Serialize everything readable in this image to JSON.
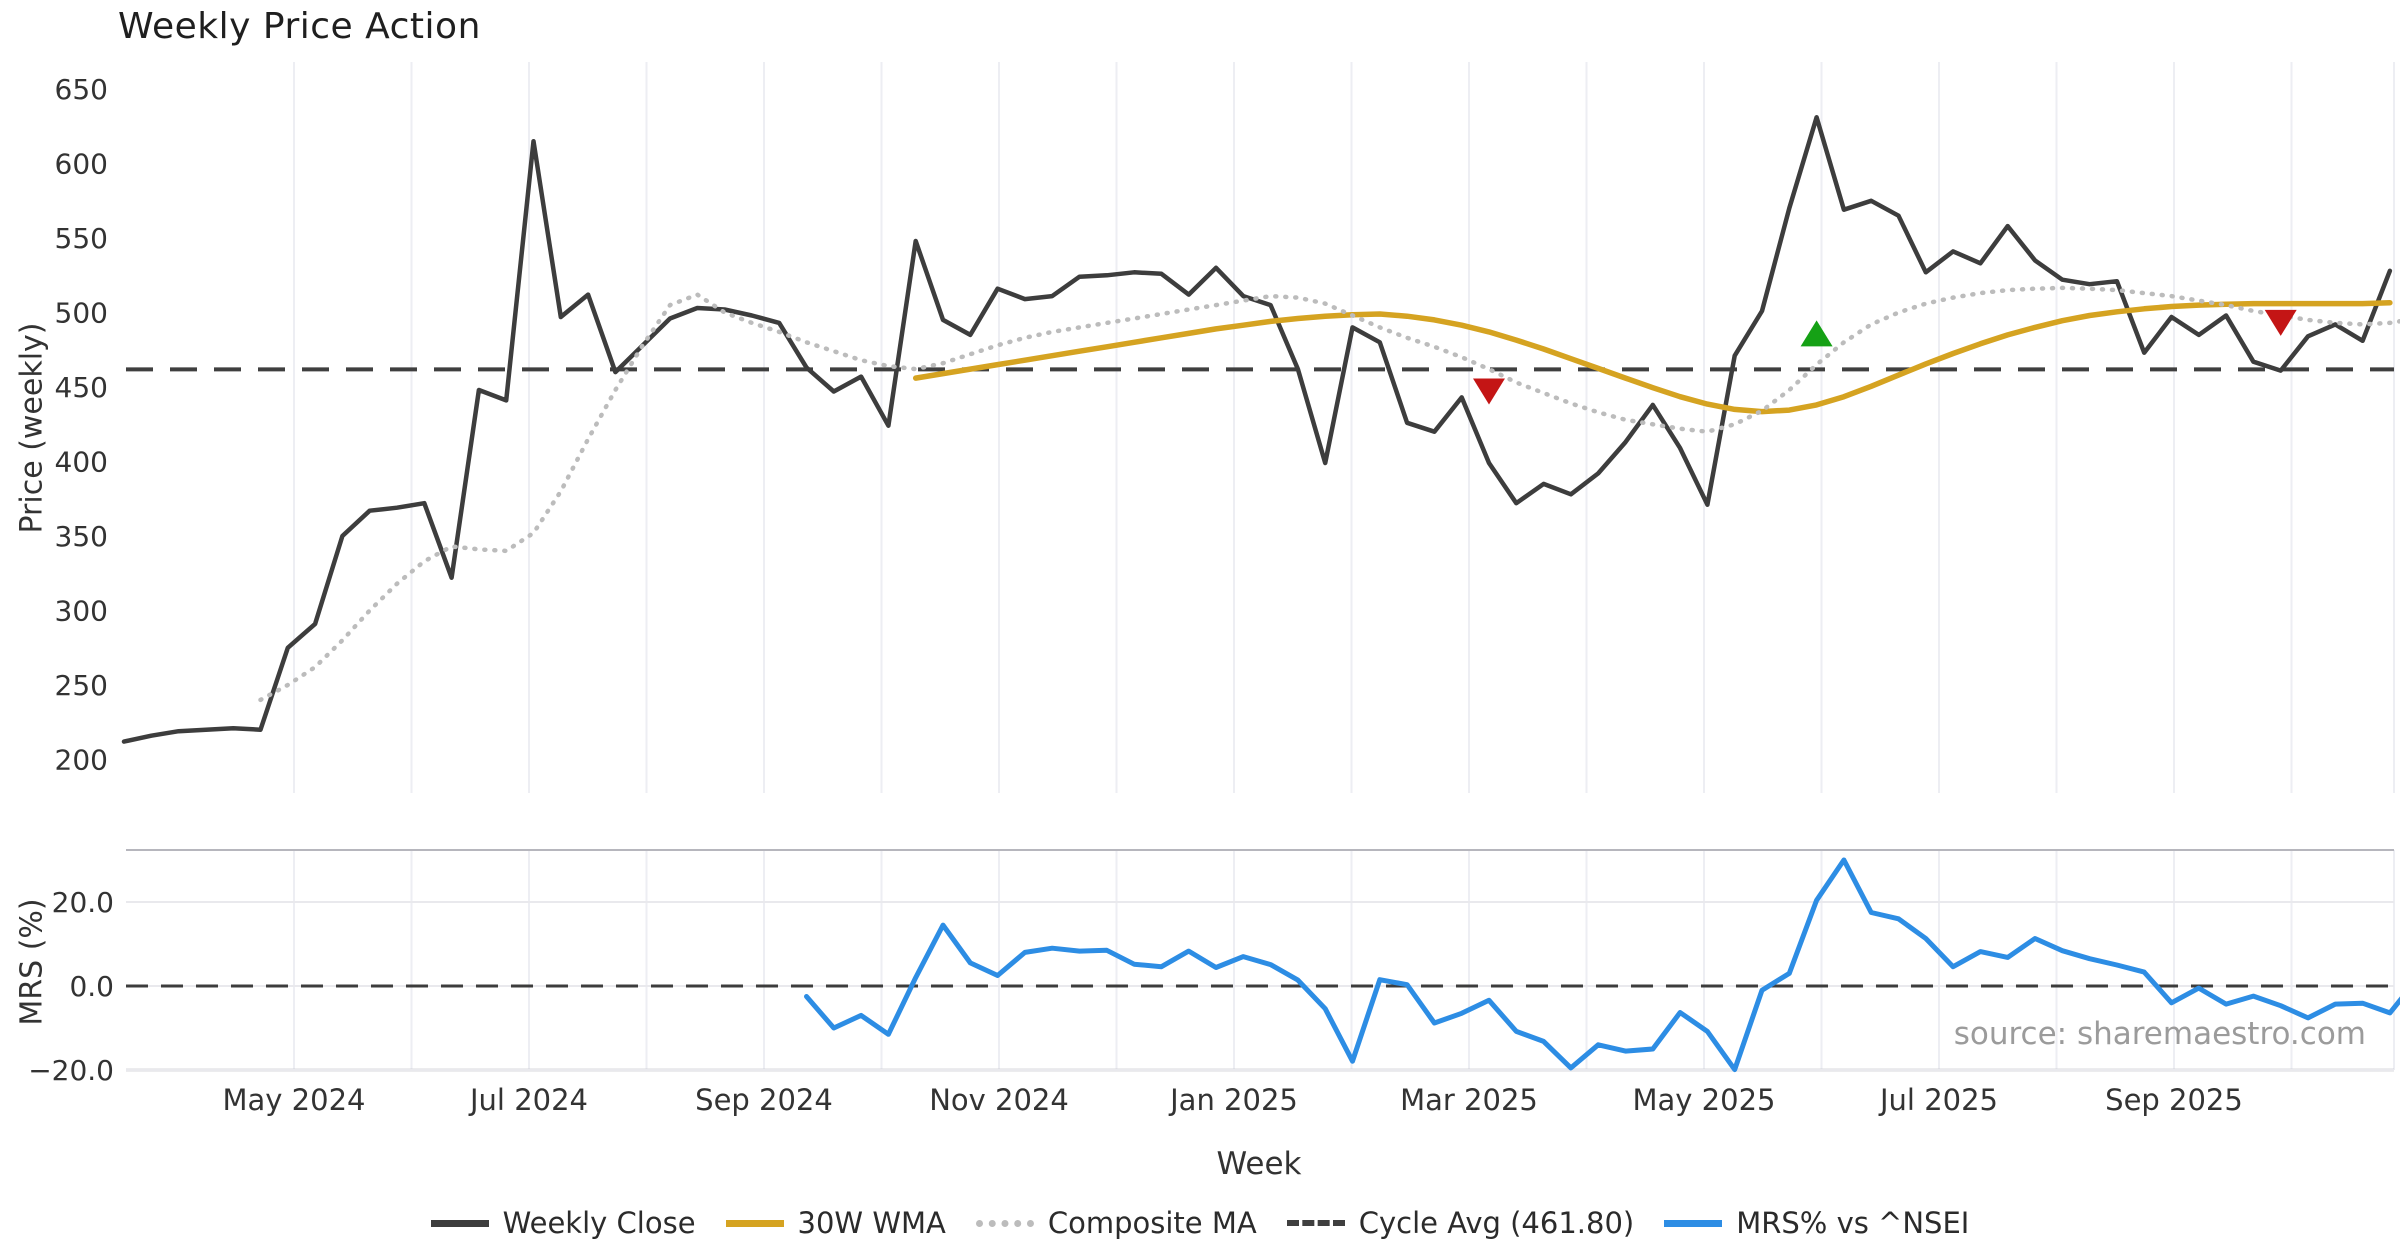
{
  "title": "Weekly Price Action",
  "source_note": "source: sharemaestro.com",
  "chart_data": {
    "type": "line",
    "title": "Weekly Price Action",
    "xlabel": "Week",
    "x_start": "2024-04-15",
    "x_freq": "weekly",
    "month_gridlines": [
      "May 2024",
      "",
      "Jul 2024",
      "",
      "Sep 2024",
      "",
      "Nov 2024",
      "",
      "Jan 2025",
      "",
      "Mar 2025",
      "",
      "May 2025",
      "",
      "Jul 2025",
      "",
      "Sep 2025",
      "",
      ""
    ],
    "panels": [
      {
        "name": "price",
        "ylabel": "Price (weekly)",
        "ylim": [
          178,
          662
        ],
        "yticks": [
          650,
          600,
          550,
          500,
          450,
          400,
          350,
          300,
          250,
          200
        ],
        "grid": "vertical-months"
      },
      {
        "name": "mrs",
        "ylabel": "MRS (%)",
        "ylim": [
          -20,
          32.4
        ],
        "yticks": [
          20.0,
          0.0,
          -20.0
        ],
        "ytick_labels": [
          "20.0",
          "0.0",
          "−20.0"
        ],
        "zero_line": "dashed",
        "grid": "horizontal+vertical-months"
      }
    ],
    "cycle_avg": 461.8,
    "series": [
      {
        "name": "Weekly Close",
        "panel": "price",
        "color": "#3d3d3d",
        "style": "solid",
        "width": 4.5,
        "start_week": 0,
        "values": [
          212,
          216,
          219,
          220,
          221,
          220,
          275,
          291,
          350,
          367,
          369,
          372,
          322,
          448,
          441,
          615,
          497,
          512,
          460,
          478,
          496,
          503,
          502,
          498,
          493,
          463,
          447,
          457,
          424,
          548,
          495,
          485,
          516,
          509,
          511,
          524,
          525,
          527,
          526,
          512,
          530,
          511,
          505,
          462,
          399,
          490,
          480,
          426,
          420,
          443,
          399,
          372,
          385,
          378,
          392,
          413,
          438,
          409,
          371,
          471,
          501,
          570,
          631,
          569,
          575,
          565,
          527,
          541,
          533,
          558,
          535,
          522,
          519,
          521,
          473,
          497,
          485,
          498,
          467,
          461,
          484,
          492,
          481,
          528
        ]
      },
      {
        "name": "30W WMA",
        "panel": "price",
        "color": "#d5a321",
        "style": "solid",
        "width": 5.5,
        "start_week": 29,
        "values": [
          456,
          459,
          462,
          465,
          468,
          471,
          474,
          477,
          480,
          483,
          486,
          489,
          491.5,
          494,
          496,
          497.5,
          498.5,
          499,
          497.5,
          495,
          491.5,
          487,
          481.5,
          475.5,
          469,
          462.5,
          456,
          449.5,
          443.5,
          438.5,
          435,
          433.5,
          434.5,
          438,
          443.5,
          450.5,
          458,
          465.5,
          472.5,
          479,
          485,
          490,
          494.5,
          498,
          500.5,
          502.5,
          504,
          505,
          505.5,
          506,
          506,
          506,
          506,
          506,
          506.5
        ]
      },
      {
        "name": "Composite MA",
        "panel": "price",
        "color": "#bcbcbc",
        "style": "dotted",
        "width": 4.5,
        "start_week": 5,
        "values": [
          240,
          250,
          262,
          280,
          300,
          318,
          333,
          343,
          341,
          340,
          352,
          380,
          415,
          448,
          478,
          505,
          512,
          500,
          493,
          487,
          480,
          474,
          468,
          464,
          462,
          466,
          472,
          478,
          483,
          487,
          490,
          493,
          496,
          499,
          502,
          505,
          508,
          511,
          510,
          506,
          498,
          490,
          483,
          477,
          470,
          462,
          453,
          446,
          439,
          433,
          428,
          425,
          422,
          420,
          425,
          434,
          448,
          465,
          480,
          492,
          500,
          506,
          510,
          513,
          515,
          516,
          516.5,
          516,
          515,
          513,
          511,
          508,
          505,
          501,
          498,
          495,
          493,
          492,
          493,
          496
        ]
      },
      {
        "name": "MRS% vs ^NSEI",
        "panel": "mrs",
        "color": "#2d8de4",
        "style": "solid",
        "width": 5,
        "start_week": 25,
        "values": [
          -2.5,
          -10,
          -7,
          -11.5,
          2,
          14.5,
          5.5,
          2.5,
          8,
          9,
          8.3,
          8.5,
          5.2,
          4.6,
          8.3,
          4.4,
          7,
          5.1,
          1.4,
          -5.4,
          -17.9,
          1.5,
          0.3,
          -8.8,
          -6.5,
          -3.4,
          -10.8,
          -13.2,
          -19.5,
          -14,
          -15.5,
          -15,
          -6.3,
          -10.8,
          -19.9,
          -1,
          3,
          20.4,
          30,
          17.5,
          16,
          11.3,
          4.6,
          8.2,
          6.8,
          11.3,
          8.4,
          6.5,
          5,
          3.3,
          -4,
          -0.5,
          -4.3,
          -2.4,
          -4.7,
          -7.6,
          -4.3,
          -4.1,
          -6.4,
          1.7
        ]
      }
    ],
    "markers": [
      {
        "shape": "triangle-down",
        "color": "#c41515",
        "week": 50,
        "price": 447
      },
      {
        "shape": "triangle-up",
        "color": "#15a115",
        "week": 62,
        "price": 486
      },
      {
        "shape": "triangle-down",
        "color": "#c41515",
        "week": 79,
        "price": 493
      }
    ],
    "legend": [
      {
        "label": "Weekly Close",
        "swatch": "solid",
        "color": "#3d3d3d"
      },
      {
        "label": "30W WMA",
        "swatch": "solid",
        "color": "#d5a321"
      },
      {
        "label": "Composite MA",
        "swatch": "dotted",
        "color": "#bcbcbc"
      },
      {
        "label": "Cycle Avg (461.80)",
        "swatch": "dashed",
        "color": "#3f3f3f"
      },
      {
        "label": "MRS% vs ^NSEI",
        "swatch": "solid",
        "color": "#2d8de4"
      }
    ]
  }
}
